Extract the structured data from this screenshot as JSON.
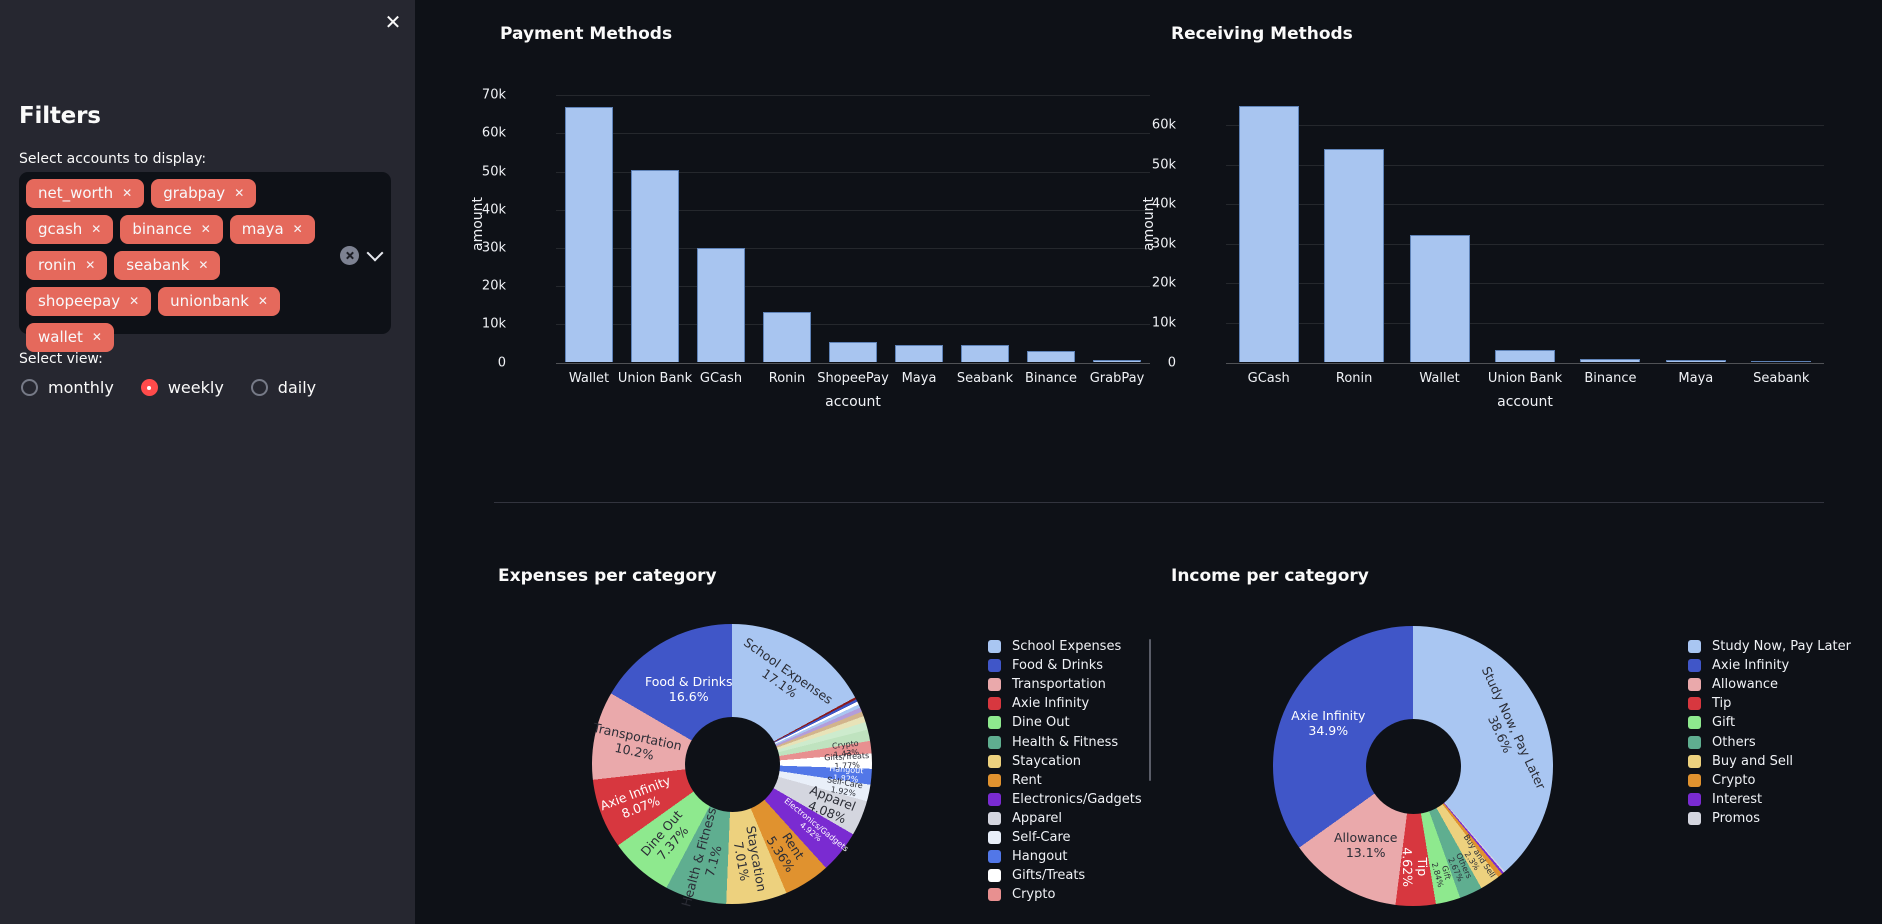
{
  "sidebar": {
    "close_label": "✕",
    "title": "Filters",
    "accounts_label": "Select accounts to display:",
    "accounts": [
      "net_worth",
      "grabpay",
      "gcash",
      "binance",
      "maya",
      "ronin",
      "seabank",
      "shopeepay",
      "unionbank",
      "wallet"
    ],
    "tag_remove_glyph": "✕",
    "view_label": "Select view:",
    "views": [
      {
        "label": "monthly",
        "selected": false
      },
      {
        "label": "weekly",
        "selected": true
      },
      {
        "label": "daily",
        "selected": false
      }
    ]
  },
  "colors": {
    "page_bg": "#0e1117",
    "sidebar_bg": "#262730",
    "input_bg": "#0e1117",
    "tag": "#e5695c",
    "radio_selected": "#ff4b4b",
    "bar": "#a8c5f0",
    "text": "#fafafa"
  },
  "chart_data": [
    {
      "type": "bar",
      "title": "Payment Methods",
      "xlabel": "account",
      "ylabel": "amount",
      "categories": [
        "Wallet",
        "Union Bank",
        "GCash",
        "Ronin",
        "ShopeePay",
        "Maya",
        "Seabank",
        "Binance",
        "GrabPay"
      ],
      "values": [
        67000,
        50300,
        30000,
        13200,
        5300,
        4500,
        4600,
        3100,
        600
      ],
      "ylim": [
        0,
        70000
      ],
      "yticks": [
        0,
        10000,
        20000,
        30000,
        40000,
        50000,
        60000,
        70000
      ],
      "ytick_labels": [
        "0",
        "10k",
        "20k",
        "30k",
        "40k",
        "50k",
        "60k",
        "70k"
      ],
      "grid": true,
      "bar_color": "#a8c5f0"
    },
    {
      "type": "bar",
      "title": "Receiving Methods",
      "xlabel": "account",
      "ylabel": "amount",
      "categories": [
        "GCash",
        "Ronin",
        "Wallet",
        "Union Bank",
        "Binance",
        "Maya",
        "Seabank"
      ],
      "values": [
        64800,
        54000,
        32200,
        3100,
        1000,
        700,
        300
      ],
      "ylim": [
        0,
        67500
      ],
      "yticks": [
        0,
        10000,
        20000,
        30000,
        40000,
        50000,
        60000
      ],
      "ytick_labels": [
        "0",
        "10k",
        "20k",
        "30k",
        "40k",
        "50k",
        "60k"
      ],
      "grid": true,
      "bar_color": "#a8c5f0"
    },
    {
      "type": "pie",
      "title": "Expenses per category",
      "hole": 0.34,
      "slices": [
        {
          "name": "School Expenses",
          "pct": 17.1,
          "color": "#a9c6f2",
          "label": {
            "show": true,
            "rot": 35,
            "r": 0.72,
            "color": "#2b2d36"
          }
        },
        {
          "name": "",
          "pct": 0.25,
          "color": "#8c1a1a",
          "label": {
            "show": false
          }
        },
        {
          "name": "",
          "pct": 0.3,
          "color": "#3d56c5",
          "label": {
            "show": false
          }
        },
        {
          "name": "",
          "pct": 0.35,
          "color": "#ffffff",
          "label": {
            "show": false
          }
        },
        {
          "name": "",
          "pct": 0.4,
          "color": "#a9c6f2",
          "label": {
            "show": false
          }
        },
        {
          "name": "",
          "pct": 0.5,
          "color": "#b39ddb",
          "label": {
            "show": false
          }
        },
        {
          "name": "",
          "pct": 0.55,
          "color": "#d2b48c",
          "label": {
            "show": false
          }
        },
        {
          "name": "",
          "pct": 0.7,
          "color": "#e8e3b8",
          "label": {
            "show": false
          }
        },
        {
          "name": "",
          "pct": 0.9,
          "color": "#cdebcd",
          "label": {
            "show": false
          }
        },
        {
          "name": "",
          "pct": 1.3,
          "color": "#bfe3bf",
          "label": {
            "show": false
          }
        },
        {
          "name": "Crypto",
          "pct": 1.43,
          "color": "#e89090",
          "label": {
            "show": true,
            "rot": -7,
            "r": 0.82,
            "color": "#2b2d36",
            "tiny": true
          }
        },
        {
          "name": "Gifts/Treats",
          "pct": 1.77,
          "color": "#ffffff",
          "label": {
            "show": true,
            "rot": -3,
            "r": 0.82,
            "color": "#2b2d36",
            "tiny": true
          }
        },
        {
          "name": "Hangout",
          "pct": 1.82,
          "color": "#5277e8",
          "label": {
            "show": true,
            "rot": 4,
            "r": 0.82,
            "color": "#ffffff",
            "tiny": true
          }
        },
        {
          "name": "Self-Care",
          "pct": 1.92,
          "color": "#e9eff9",
          "label": {
            "show": true,
            "rot": 10,
            "r": 0.82,
            "color": "#2b2d36",
            "tiny": true
          }
        },
        {
          "name": "Apparel",
          "pct": 4.08,
          "color": "#d4d6df",
          "label": {
            "show": true,
            "rot": 22,
            "r": 0.76,
            "color": "#2b2d36"
          }
        },
        {
          "name": "Electronics/Gadgets",
          "pct": 4.92,
          "color": "#7a2bd1",
          "label": {
            "show": true,
            "rot": 39,
            "r": 0.74,
            "color": "#ffffff",
            "tiny": true
          }
        },
        {
          "name": "Rent",
          "pct": 5.36,
          "color": "#e0922f",
          "label": {
            "show": true,
            "rot": 57,
            "r": 0.73,
            "color": "#2b2d36"
          }
        },
        {
          "name": "Staycation",
          "pct": 7.01,
          "color": "#edd17e",
          "label": {
            "show": true,
            "rot": 80,
            "r": 0.7,
            "color": "#2b2d36"
          }
        },
        {
          "name": "Health & Fitness",
          "pct": 7.1,
          "color": "#5fae90",
          "label": {
            "show": true,
            "rot": -75,
            "r": 0.7,
            "color": "#2b2d36"
          }
        },
        {
          "name": "Dine Out",
          "pct": 7.37,
          "color": "#8ee98e",
          "label": {
            "show": true,
            "rot": -49,
            "r": 0.7,
            "color": "#2b2d36"
          }
        },
        {
          "name": "Axie Infinity",
          "pct": 8.07,
          "color": "#d7373f",
          "label": {
            "show": true,
            "rot": -21,
            "r": 0.72,
            "color": "#ffffff"
          }
        },
        {
          "name": "Transportation",
          "pct": 10.2,
          "color": "#eaa9ab",
          "label": {
            "show": true,
            "rot": 12,
            "r": 0.7,
            "color": "#2b2d36"
          }
        },
        {
          "name": "Food & Drinks",
          "pct": 16.6,
          "color": "#4056c8",
          "label": {
            "show": true,
            "rot": 0,
            "r": 0.62,
            "color": "#ffffff"
          }
        }
      ],
      "legend": [
        {
          "name": "School Expenses",
          "color": "#a9c6f2"
        },
        {
          "name": "Food & Drinks",
          "color": "#4056c8"
        },
        {
          "name": "Transportation",
          "color": "#eaa9ab"
        },
        {
          "name": "Axie Infinity",
          "color": "#d7373f"
        },
        {
          "name": "Dine Out",
          "color": "#8ee98e"
        },
        {
          "name": "Health & Fitness",
          "color": "#5fae90"
        },
        {
          "name": "Staycation",
          "color": "#edd17e"
        },
        {
          "name": "Rent",
          "color": "#e0922f"
        },
        {
          "name": "Electronics/Gadgets",
          "color": "#7a2bd1"
        },
        {
          "name": "Apparel",
          "color": "#d4d6df"
        },
        {
          "name": "Self-Care",
          "color": "#e9eff9"
        },
        {
          "name": "Hangout",
          "color": "#5277e8"
        },
        {
          "name": "Gifts/Treats",
          "color": "#ffffff"
        },
        {
          "name": "Crypto",
          "color": "#e89090"
        }
      ]
    },
    {
      "type": "pie",
      "title": "Income per category",
      "hole": 0.34,
      "slices": [
        {
          "name": "Study Now, Pay Later",
          "pct": 38.6,
          "color": "#a9c6f2",
          "label": {
            "show": true,
            "rot": 65,
            "r": 0.72,
            "color": "#2b2d36"
          }
        },
        {
          "name": "Promos",
          "pct": 0.17,
          "color": "#d4d6df",
          "label": {
            "show": false
          }
        },
        {
          "name": "Interest",
          "pct": 0.25,
          "color": "#7a2bd1",
          "label": {
            "show": false
          }
        },
        {
          "name": "Crypto",
          "pct": 0.55,
          "color": "#e0922f",
          "label": {
            "show": false
          }
        },
        {
          "name": "Buy and Sell",
          "pct": 2.3,
          "color": "#edd17e",
          "label": {
            "show": true,
            "rot": 56,
            "r": 0.8,
            "color": "#2b2d36",
            "tiny": true
          }
        },
        {
          "name": "Others",
          "pct": 2.67,
          "color": "#5fae90",
          "label": {
            "show": true,
            "rot": 65,
            "r": 0.8,
            "color": "#2b2d36",
            "tiny": true
          }
        },
        {
          "name": "Gift",
          "pct": 2.84,
          "color": "#8ee98e",
          "label": {
            "show": true,
            "rot": 75,
            "r": 0.8,
            "color": "#2b2d36",
            "tiny": true
          }
        },
        {
          "name": "Tip",
          "pct": 4.62,
          "color": "#d7373f",
          "label": {
            "show": true,
            "rot": 89,
            "r": 0.72,
            "color": "#ffffff"
          }
        },
        {
          "name": "Allowance",
          "pct": 13.1,
          "color": "#eaa9ab",
          "label": {
            "show": true,
            "rot": 0,
            "r": 0.66,
            "color": "#2b2d36"
          }
        },
        {
          "name": "Axie Infinity",
          "pct": 34.9,
          "color": "#4056c8",
          "label": {
            "show": true,
            "rot": 0,
            "r": 0.68,
            "color": "#ffffff"
          }
        }
      ],
      "legend": [
        {
          "name": "Study Now, Pay Later",
          "color": "#a9c6f2"
        },
        {
          "name": "Axie Infinity",
          "color": "#4056c8"
        },
        {
          "name": "Allowance",
          "color": "#eaa9ab"
        },
        {
          "name": "Tip",
          "color": "#d7373f"
        },
        {
          "name": "Gift",
          "color": "#8ee98e"
        },
        {
          "name": "Others",
          "color": "#5fae90"
        },
        {
          "name": "Buy and Sell",
          "color": "#edd17e"
        },
        {
          "name": "Crypto",
          "color": "#e0922f"
        },
        {
          "name": "Interest",
          "color": "#7a2bd1"
        },
        {
          "name": "Promos",
          "color": "#d4d6df"
        }
      ]
    }
  ]
}
